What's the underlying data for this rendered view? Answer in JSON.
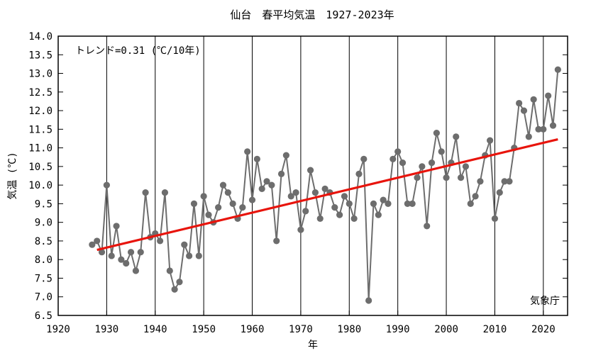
{
  "chart_data": {
    "type": "line",
    "title": "仙台　春平均気温　1927-2023年",
    "xlabel": "年",
    "ylabel": "気温 (℃)",
    "xlim": [
      1920,
      2025
    ],
    "ylim": [
      6.5,
      14.0
    ],
    "x_ticks": [
      "1920",
      "1930",
      "1940",
      "1950",
      "1960",
      "1970",
      "1980",
      "1990",
      "2000",
      "2010",
      "2020"
    ],
    "y_ticks": [
      "6.5",
      "7.0",
      "7.5",
      "8.0",
      "8.5",
      "9.0",
      "9.5",
      "10.0",
      "10.5",
      "11.0",
      "11.5",
      "12.0",
      "12.5",
      "13.0",
      "13.5",
      "14.0"
    ],
    "trend_label": "トレンド=0.31 (℃/10年)",
    "source": "気象庁",
    "colors": {
      "series": "#6d6d6d",
      "trend": "#e8140c"
    },
    "series": [
      {
        "x": [
          1927,
          1928,
          1929,
          1930,
          1931,
          1932,
          1933,
          1934,
          1935,
          1936,
          1937,
          1938,
          1939,
          1940,
          1941,
          1942,
          1943,
          1944,
          1945,
          1946,
          1947,
          1948,
          1949,
          1950,
          1951,
          1952,
          1953,
          1954,
          1955,
          1956,
          1957,
          1958,
          1959,
          1960,
          1961,
          1962,
          1963,
          1964,
          1965,
          1966,
          1967,
          1968,
          1969,
          1970,
          1971,
          1972,
          1973,
          1974,
          1975,
          1976,
          1977,
          1978,
          1979,
          1980,
          1981,
          1982,
          1983,
          1984,
          1985,
          1986,
          1987,
          1988,
          1989,
          1990,
          1991,
          1992,
          1993,
          1994,
          1995,
          1996,
          1997,
          1998,
          1999,
          2000,
          2001,
          2002,
          2003,
          2004,
          2005,
          2006,
          2007,
          2008,
          2009,
          2010,
          2011,
          2012,
          2013,
          2014,
          2015,
          2016,
          2017,
          2018,
          2019,
          2020,
          2021,
          2022,
          2023
        ],
        "y": [
          8.4,
          8.5,
          8.2,
          10.0,
          8.1,
          8.9,
          8.0,
          7.9,
          8.2,
          7.7,
          8.2,
          9.8,
          8.6,
          8.7,
          8.5,
          9.8,
          7.7,
          7.2,
          7.4,
          8.4,
          8.1,
          9.5,
          8.1,
          9.7,
          9.2,
          9.0,
          9.4,
          10.0,
          9.8,
          9.5,
          9.1,
          9.4,
          10.9,
          9.6,
          10.7,
          9.9,
          10.1,
          10.0,
          8.5,
          10.3,
          10.8,
          9.7,
          9.8,
          8.8,
          9.3,
          10.4,
          9.8,
          9.1,
          9.9,
          9.8,
          9.4,
          9.2,
          9.7,
          9.5,
          9.1,
          10.3,
          10.7,
          6.9,
          9.5,
          9.2,
          9.6,
          9.5,
          10.7,
          10.9,
          10.6,
          9.5,
          9.5,
          10.2,
          10.5,
          8.9,
          10.6,
          11.4,
          10.9,
          10.2,
          10.6,
          11.3,
          10.2,
          10.5,
          9.5,
          9.7,
          10.1,
          10.8,
          11.2,
          9.1,
          9.8,
          10.1,
          10.1,
          11.0,
          12.2,
          12.0,
          11.3,
          12.3,
          11.5,
          11.5,
          12.4,
          11.6,
          13.1
        ]
      }
    ],
    "trend": {
      "x": [
        1928,
        2023
      ],
      "y": [
        8.26,
        11.23
      ]
    }
  }
}
